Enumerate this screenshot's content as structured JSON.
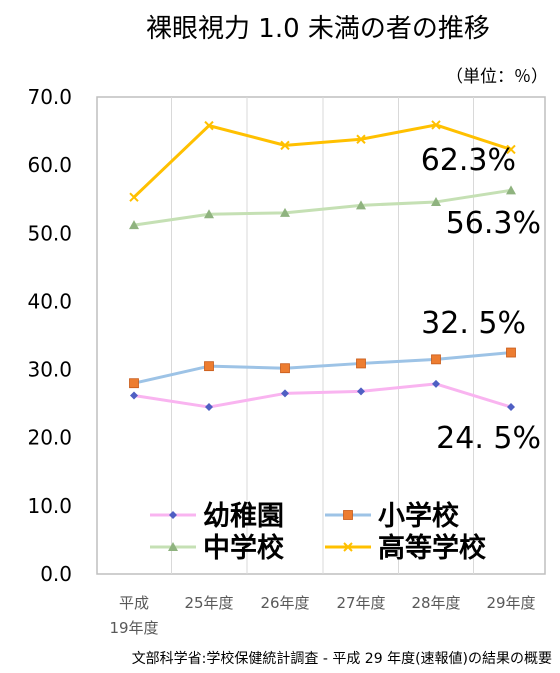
{
  "chart_data": {
    "type": "line",
    "title": "裸眼視力 1.0 未満の者の推移",
    "unit_label": "（単位：％）",
    "categories": [
      [
        "平成",
        "19年度"
      ],
      [
        "25年度"
      ],
      [
        "26年度"
      ],
      [
        "27年度"
      ],
      [
        "28年度"
      ],
      [
        "29年度"
      ]
    ],
    "ylim": [
      0,
      70
    ],
    "yticks": [
      "0.0",
      "10.0",
      "20.0",
      "30.0",
      "40.0",
      "50.0",
      "60.0",
      "70.0"
    ],
    "grid": {
      "vertical": true,
      "horizontal": false
    },
    "legend": {
      "placement": "bottom-inside"
    },
    "series": [
      {
        "key": "kinder",
        "name": "幼稚園",
        "color": "#F9B4F0",
        "marker": "diamond",
        "marker_color": "#4F5FC3",
        "values": [
          26.2,
          24.5,
          26.5,
          26.8,
          27.9,
          24.5
        ],
        "end_label": "24. 5%"
      },
      {
        "key": "elem",
        "name": "小学校",
        "color": "#9DC3E6",
        "marker": "square",
        "marker_color": "#ED7D31",
        "values": [
          28.0,
          30.5,
          30.2,
          30.9,
          31.5,
          32.5
        ],
        "end_label": "32. 5%"
      },
      {
        "key": "junior",
        "name": "中学校",
        "color": "#C5E0B4",
        "marker": "triangle",
        "marker_color": "#8FB37F",
        "values": [
          51.2,
          52.8,
          53.0,
          54.1,
          54.6,
          56.3
        ],
        "end_label": "56.3%"
      },
      {
        "key": "high",
        "name": "高等学校",
        "color": "#FFC000",
        "marker": "x",
        "marker_color": "#FFC000",
        "values": [
          55.3,
          65.8,
          62.9,
          63.8,
          65.9,
          62.3
        ],
        "end_label": "62.3%"
      }
    ],
    "source": "文部科学省:学校保健統計調査 - 平成 29 年度(速報値)の結果の概要"
  }
}
